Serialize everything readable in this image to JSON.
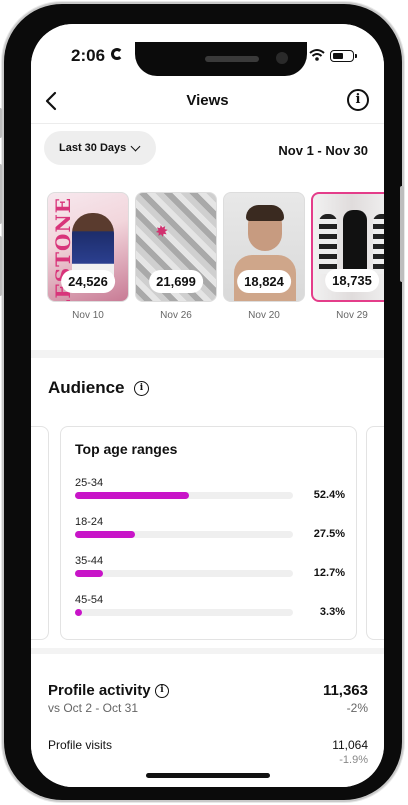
{
  "status_bar": {
    "time": "2:06"
  },
  "header": {
    "title": "Views",
    "info_icon_glyph": "i"
  },
  "filters": {
    "range_label": "Last 30 Days",
    "date_range": "Nov 1 - Nov 30"
  },
  "top_posts": [
    {
      "views": "24,526",
      "date": "Nov 10",
      "image_text": "MILESTONE"
    },
    {
      "views": "21,699",
      "date": "Nov 26"
    },
    {
      "views": "18,824",
      "date": "Nov 20"
    },
    {
      "views": "18,735",
      "date": "Nov 29"
    }
  ],
  "audience": {
    "title": "Audience",
    "info_glyph": "i",
    "age_card": {
      "title": "Top age ranges",
      "ranges": [
        {
          "label": "25-34",
          "percent_text": "52.4%",
          "value": 52.4
        },
        {
          "label": "18-24",
          "percent_text": "27.5%",
          "value": 27.5
        },
        {
          "label": "35-44",
          "percent_text": "12.7%",
          "value": 12.7
        },
        {
          "label": "45-54",
          "percent_text": "3.3%",
          "value": 3.3
        }
      ]
    }
  },
  "profile_activity": {
    "title": "Profile activity",
    "info_glyph": "i",
    "comparison": "vs Oct 2 - Oct 31",
    "total": "11,363",
    "change": "-2%",
    "visits_label": "Profile visits",
    "visits_value": "11,064",
    "visits_change": "-1.9%"
  },
  "colors": {
    "accent_bar": "#c814c8",
    "bar_track": "#efefef",
    "background": "#f3f3f3"
  }
}
